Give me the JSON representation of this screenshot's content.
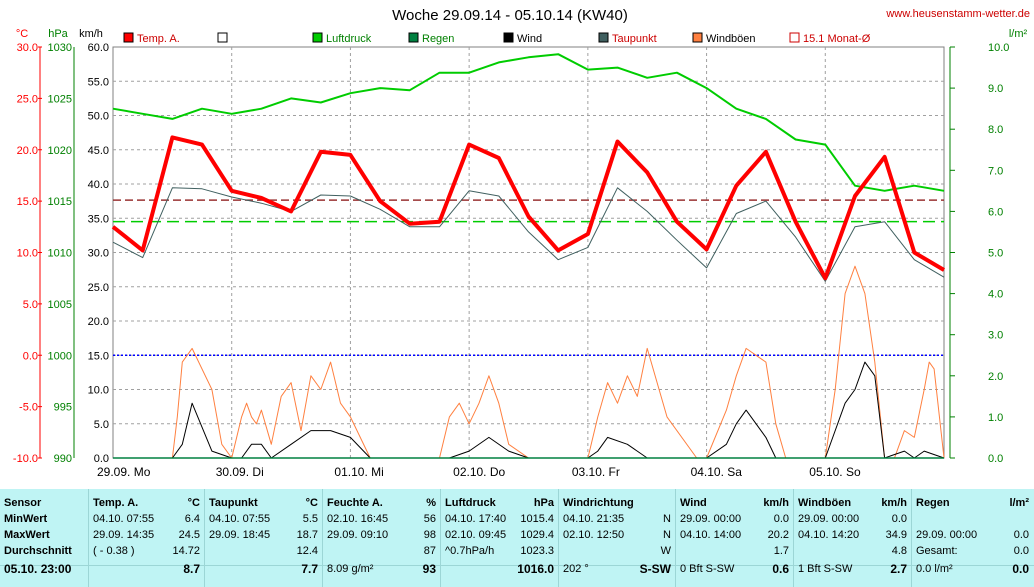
{
  "title": "Woche 29.09.14 - 05.10.14 (KW40)",
  "website": "www.heusenstamm-wetter.de",
  "chart_data": {
    "type": "line",
    "title": "Woche 29.09.14 - 05.10.14 (KW40)",
    "axes": {
      "temp": {
        "unit": "°C",
        "range": [
          -10,
          30
        ],
        "ticks": [
          "30.0",
          "25.0",
          "20.0",
          "15.0",
          "10.0",
          "5.0",
          "0.0",
          "-5.0",
          "-10.0"
        ]
      },
      "pressure": {
        "unit": "hPa",
        "range": [
          990,
          1030
        ],
        "ticks": [
          "1030",
          "1025",
          "1020",
          "1015",
          "1010",
          "1005",
          "1000",
          "995",
          "990"
        ]
      },
      "wind": {
        "unit": "km/h",
        "range": [
          0,
          60
        ],
        "ticks": [
          "60.0",
          "55.0",
          "50.0",
          "45.0",
          "40.0",
          "35.0",
          "30.0",
          "25.0",
          "20.0",
          "15.0",
          "10.0",
          "5.0",
          "0.0"
        ]
      },
      "rain": {
        "unit": "l/m²",
        "range": [
          0,
          10
        ],
        "ticks": [
          "10.0",
          "9.0",
          "8.0",
          "7.0",
          "6.0",
          "5.0",
          "4.0",
          "3.0",
          "2.0",
          "1.0",
          "0.0"
        ]
      }
    },
    "x_labels": [
      "29.09. Mo",
      "30.09. Di",
      "01.10. Mi",
      "02.10. Do",
      "03.10. Fr",
      "04.10. Sa",
      "05.10. So"
    ],
    "legend": [
      {
        "name": "Temp. A.",
        "color": "#ff0000"
      },
      {
        "name": "",
        "color": "#ffffff"
      },
      {
        "name": "Luftdruck",
        "color": "#00cc00"
      },
      {
        "name": "Regen",
        "color": "#008040"
      },
      {
        "name": "Wind",
        "color": "#000000"
      },
      {
        "name": "Taupunkt",
        "color": "#406060"
      },
      {
        "name": "Windböen",
        "color": "#ff8040"
      },
      {
        "name": "15.1 Monat-Ø",
        "color": "#cc0000"
      }
    ],
    "reference_lines": {
      "monthly_avg_temp": 15.1,
      "freeze": 0.0,
      "pressure_avg": 1013.0
    },
    "series": [
      {
        "name": "Temp. A.",
        "axis": "temp",
        "x": [
          0,
          6,
          12,
          18,
          24,
          30,
          36,
          42,
          48,
          54,
          60,
          66,
          72,
          78,
          84,
          90,
          96,
          102,
          108,
          114,
          120,
          126,
          132,
          138,
          144,
          150,
          156,
          162,
          168
        ],
        "values": [
          12.5,
          10.2,
          21.2,
          20.5,
          16.0,
          15.3,
          14.0,
          19.8,
          19.5,
          15.0,
          12.8,
          13.0,
          20.5,
          19.2,
          13.5,
          10.2,
          11.8,
          20.8,
          17.8,
          13.0,
          10.3,
          16.5,
          19.8,
          13.0,
          7.5,
          15.5,
          19.3,
          10.0,
          8.3
        ]
      },
      {
        "name": "Taupunkt",
        "axis": "temp",
        "x": [
          0,
          6,
          12,
          18,
          24,
          30,
          36,
          42,
          48,
          54,
          60,
          66,
          72,
          78,
          84,
          90,
          96,
          102,
          108,
          114,
          120,
          126,
          132,
          138,
          144,
          150,
          156,
          162,
          168
        ],
        "values": [
          11.0,
          9.5,
          16.3,
          16.2,
          15.4,
          14.8,
          14.0,
          15.6,
          15.5,
          14.2,
          12.5,
          12.5,
          16.0,
          15.5,
          12.0,
          9.3,
          10.5,
          16.3,
          14.0,
          11.2,
          8.5,
          13.8,
          15.0,
          11.5,
          7.2,
          12.5,
          13.0,
          9.3,
          7.6
        ]
      },
      {
        "name": "Luftdruck",
        "axis": "pressure",
        "x": [
          0,
          6,
          12,
          18,
          24,
          30,
          36,
          42,
          48,
          54,
          60,
          66,
          72,
          78,
          84,
          90,
          96,
          102,
          108,
          114,
          120,
          126,
          132,
          138,
          144,
          150,
          156,
          162,
          168
        ],
        "values": [
          1024.0,
          1023.5,
          1023.0,
          1024.0,
          1023.5,
          1024.0,
          1025.0,
          1024.6,
          1025.5,
          1026.0,
          1025.8,
          1027.5,
          1027.5,
          1028.5,
          1029.0,
          1029.3,
          1027.8,
          1028.0,
          1027.0,
          1027.5,
          1026.0,
          1024.0,
          1023.0,
          1021.0,
          1020.5,
          1016.5,
          1016.0,
          1016.5,
          1016.0
        ]
      },
      {
        "name": "Wind",
        "axis": "wind",
        "x": [
          0,
          12,
          14,
          16,
          20,
          24,
          26,
          28,
          30,
          32,
          36,
          40,
          44,
          48,
          52,
          56,
          60,
          68,
          72,
          76,
          80,
          84,
          90,
          96,
          98,
          100,
          104,
          108,
          112,
          120,
          124,
          126,
          128,
          132,
          134,
          136,
          140,
          144,
          148,
          150,
          152,
          154,
          156,
          160,
          162,
          164,
          168
        ],
        "values": [
          0,
          0,
          2,
          8,
          1,
          0,
          0,
          2,
          2,
          0,
          2,
          4,
          4,
          3,
          0,
          0,
          0,
          0,
          1,
          3,
          1,
          0,
          0,
          0,
          1,
          3,
          2,
          0,
          0,
          0,
          2,
          5,
          7,
          3,
          0,
          0,
          0,
          0,
          8,
          10,
          14,
          12,
          0,
          1,
          0,
          1,
          0
        ]
      },
      {
        "name": "Windböen",
        "axis": "wind",
        "x": [
          0,
          12,
          13,
          14,
          16,
          20,
          22,
          24,
          26,
          27,
          28,
          29,
          30,
          32,
          34,
          36,
          38,
          40,
          42,
          44,
          46,
          48,
          52,
          56,
          60,
          66,
          68,
          70,
          72,
          74,
          76,
          78,
          80,
          84,
          90,
          96,
          98,
          100,
          102,
          104,
          106,
          108,
          110,
          112,
          118,
          120,
          124,
          126,
          128,
          132,
          134,
          136,
          140,
          144,
          146,
          148,
          150,
          152,
          154,
          156,
          158,
          160,
          162,
          164,
          165,
          166,
          168
        ],
        "values": [
          0,
          0,
          6,
          14,
          16,
          10,
          2,
          0,
          6,
          8,
          6,
          5,
          7,
          2,
          9,
          11,
          4,
          12,
          10,
          14,
          8,
          6,
          0,
          0,
          0,
          0,
          6,
          8,
          5,
          8,
          12,
          8,
          2,
          0,
          0,
          0,
          6,
          11,
          8,
          12,
          9,
          16,
          11,
          6,
          0,
          0,
          7,
          12,
          16,
          14,
          5,
          0,
          0,
          0,
          10,
          24,
          28,
          24,
          14,
          0,
          0,
          4,
          3,
          10,
          14,
          13,
          0
        ]
      },
      {
        "name": "Regen",
        "axis": "rain",
        "x": [
          0,
          168
        ],
        "values": [
          0,
          0
        ]
      }
    ]
  },
  "stats": {
    "sensor": {
      "header": "Sensor",
      "min": "MinWert",
      "max": "MaxWert",
      "avg": "Durchschnitt",
      "current": "05.10. 23:00"
    },
    "temp": {
      "header": "Temp. A.",
      "unit": "°C",
      "min_time": "04.10. 07:55",
      "min_val": "6.4",
      "max_time": "29.09. 14:35",
      "max_val": "24.5",
      "avg_note": "( - 0.38 )",
      "avg_val": "14.72",
      "current": "8.7"
    },
    "dew": {
      "header": "Taupunkt",
      "unit": "°C",
      "min_time": "04.10. 07:55",
      "min_val": "5.5",
      "max_time": "29.09. 18:45",
      "max_val": "18.7",
      "avg_val": "12.4",
      "current": "7.7"
    },
    "hum": {
      "header": "Feuchte A.",
      "unit": "%",
      "min_time": "02.10. 16:45",
      "min_val": "56",
      "max_time": "29.09. 09:10",
      "max_val": "98",
      "avg_val": "87",
      "current_note": "8.09 g/m²",
      "current": "93"
    },
    "press": {
      "header": "Luftdruck",
      "unit": "hPa",
      "min_time": "04.10. 17:40",
      "min_val": "1015.4",
      "max_time": "02.10. 09:45",
      "max_val": "1029.4",
      "avg_note": "^0.7hPa/h",
      "avg_val": "1023.3",
      "current": "1016.0"
    },
    "wdir": {
      "header": "Windrichtung",
      "min_time": "04.10. 21:35",
      "min_val": "N",
      "max_time": "02.10. 12:50",
      "max_val": "N",
      "avg_val": "W",
      "current_note": "202 °",
      "current": "S-SW"
    },
    "wind": {
      "header": "Wind",
      "unit": "km/h",
      "min_time": "29.09. 00:00",
      "min_val": "0.0",
      "max_time": "04.10. 14:00",
      "max_val": "20.2",
      "avg_val": "1.7",
      "current_note": "0 Bft S-SW",
      "current": "0.6"
    },
    "gust": {
      "header": "Windböen",
      "unit": "km/h",
      "min_time": "29.09. 00:00",
      "min_val": "0.0",
      "max_time": "04.10. 14:20",
      "max_val": "34.9",
      "avg_val": "4.8",
      "current_note": "1 Bft S-SW",
      "current": "2.7"
    },
    "rain": {
      "header": "Regen",
      "unit": "l/m²",
      "max_time": "29.09. 00:00",
      "max_val": "0.0",
      "avg_note": "Gesamt:",
      "avg_val": "0.0",
      "current_note": "0.0 l/m²",
      "current": "0.0"
    }
  }
}
